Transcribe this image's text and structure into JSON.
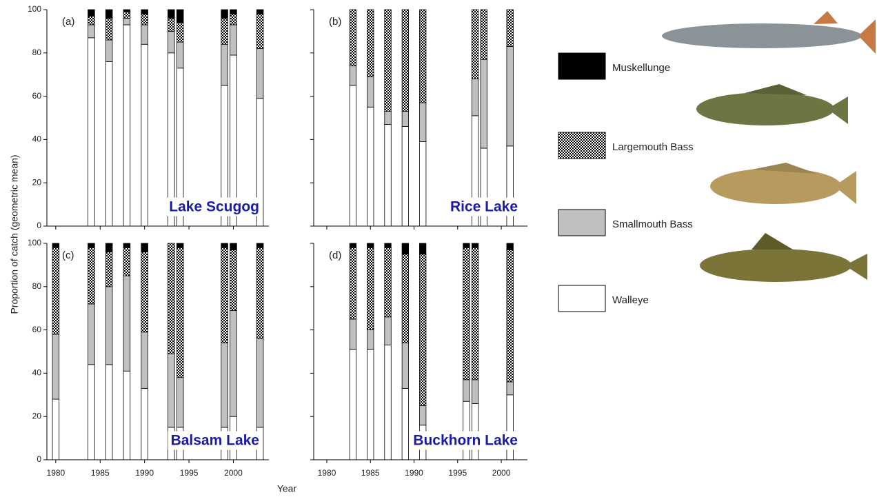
{
  "ylabel": "Proportion of catch (geometric mean)",
  "xlabel": "Year",
  "chart_data": [
    {
      "type": "bar",
      "stacked": true,
      "label": "(a)",
      "title": "Lake Scugog",
      "x": [
        1984,
        1986,
        1988,
        1990,
        1993,
        1994,
        1999,
        2000,
        2003
      ],
      "series": [
        {
          "name": "Walleye",
          "color": "#ffffff",
          "values": [
            87,
            76,
            93,
            84,
            80,
            73,
            65,
            79,
            59
          ]
        },
        {
          "name": "Smallmouth Bass",
          "color": "#c0c0c0",
          "values": [
            6,
            10,
            3,
            9,
            10,
            12,
            19,
            14,
            23
          ]
        },
        {
          "name": "Largemouth Bass",
          "color": "#000000",
          "pattern": "checkerboard",
          "values": [
            4,
            10,
            3,
            5,
            6,
            9,
            12,
            5,
            16
          ]
        },
        {
          "name": "Muskellunge",
          "color": "#000000",
          "values": [
            3,
            4,
            1,
            2,
            4,
            6,
            4,
            2,
            2
          ]
        }
      ],
      "xlim": [
        1979,
        2004
      ],
      "ylim": [
        0,
        100
      ],
      "xticks": [
        1980,
        1985,
        1990,
        1995,
        2000
      ],
      "yticks": [
        0,
        20,
        40,
        60,
        80,
        100
      ],
      "xtick_labels": false,
      "ytick_labels": true
    },
    {
      "type": "bar",
      "stacked": true,
      "label": "(b)",
      "title": "Rice Lake",
      "x": [
        1983,
        1985,
        1987,
        1989,
        1991,
        1997,
        1998,
        2001
      ],
      "series": [
        {
          "color": "#ffffff",
          "values": [
            65,
            55,
            47,
            46,
            39,
            51,
            36,
            37
          ]
        },
        {
          "color": "#c0c0c0",
          "values": [
            9,
            14,
            6,
            7,
            18,
            17,
            41,
            46
          ]
        },
        {
          "color": "#000000",
          "pattern": "checkerboard",
          "values": [
            26,
            31,
            47,
            47,
            43,
            32,
            23,
            17
          ]
        },
        {
          "color": "#000000",
          "values": [
            0,
            0,
            0,
            0,
            0,
            0,
            0,
            0
          ]
        }
      ],
      "xlim": [
        1978.5,
        2003
      ],
      "ylim": [
        0,
        100
      ],
      "xticks": [
        1980,
        1985,
        1990,
        1995,
        2000
      ],
      "yticks": [
        0,
        20,
        40,
        60,
        80,
        100
      ],
      "xtick_labels": false,
      "ytick_labels": false
    },
    {
      "type": "bar",
      "stacked": true,
      "label": "(c)",
      "title": "Balsam Lake",
      "x": [
        1980,
        1984,
        1986,
        1988,
        1990,
        1993,
        1994,
        1999,
        2000,
        2003
      ],
      "series": [
        {
          "color": "#ffffff",
          "values": [
            28,
            44,
            44,
            41,
            33,
            15,
            15,
            15,
            20,
            15
          ]
        },
        {
          "color": "#c0c0c0",
          "values": [
            30,
            28,
            36,
            44,
            26,
            34,
            23,
            39,
            49,
            41
          ]
        },
        {
          "color": "#000000",
          "pattern": "checkerboard",
          "values": [
            40,
            26,
            16,
            13,
            37,
            51,
            60,
            44,
            28,
            42
          ]
        },
        {
          "color": "#000000",
          "values": [
            2,
            2,
            4,
            2,
            4,
            0,
            2,
            2,
            3,
            2
          ]
        }
      ],
      "xlim": [
        1979,
        2004
      ],
      "ylim": [
        0,
        100
      ],
      "xticks": [
        1980,
        1985,
        1990,
        1995,
        2000
      ],
      "yticks": [
        0,
        20,
        40,
        60,
        80,
        100
      ],
      "xtick_labels": true,
      "ytick_labels": true
    },
    {
      "type": "bar",
      "stacked": true,
      "label": "(d)",
      "title": "Buckhorn Lake",
      "x": [
        1983,
        1985,
        1987,
        1989,
        1991,
        1996,
        1997,
        2001
      ],
      "series": [
        {
          "color": "#ffffff",
          "values": [
            51,
            51,
            53,
            33,
            16,
            27,
            26,
            30
          ]
        },
        {
          "color": "#c0c0c0",
          "values": [
            14,
            9,
            13,
            21,
            9,
            10,
            11,
            6
          ]
        },
        {
          "color": "#000000",
          "pattern": "checkerboard",
          "values": [
            33,
            38,
            32,
            41,
            70,
            61,
            61,
            61
          ]
        },
        {
          "color": "#000000",
          "values": [
            2,
            2,
            2,
            5,
            5,
            2,
            2,
            3
          ]
        }
      ],
      "xlim": [
        1978.5,
        2003
      ],
      "ylim": [
        0,
        100
      ],
      "xticks": [
        1980,
        1985,
        1990,
        1995,
        2000
      ],
      "yticks": [
        0,
        20,
        40,
        60,
        80,
        100
      ],
      "xtick_labels": true,
      "ytick_labels": false
    }
  ]
}
